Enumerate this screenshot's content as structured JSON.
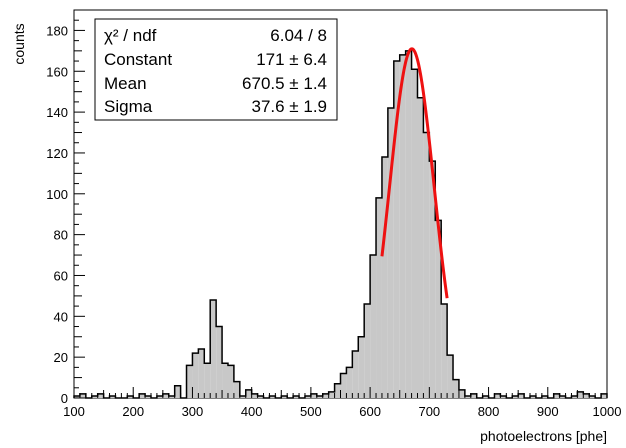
{
  "chart_data": {
    "type": "bar",
    "xlabel": "photoelectrons [phe]",
    "ylabel": "counts",
    "xlim": [
      100,
      1000
    ],
    "ylim": [
      0,
      190
    ],
    "x_ticks": [
      "100",
      "200",
      "300",
      "400",
      "500",
      "600",
      "700",
      "800",
      "900",
      "1000"
    ],
    "y_ticks": [
      "0",
      "20",
      "40",
      "60",
      "80",
      "100",
      "120",
      "140",
      "160",
      "180"
    ],
    "grid": false,
    "bin_width": 10,
    "bin_edges_start": 100,
    "values": [
      1,
      2,
      0,
      1,
      2,
      0,
      1,
      0,
      0,
      1,
      0,
      2,
      1,
      0,
      1,
      2,
      1,
      6,
      0,
      16,
      22,
      24,
      17,
      48,
      35,
      17,
      16,
      8,
      1,
      4,
      2,
      1,
      0,
      1,
      0,
      1,
      0,
      1,
      0,
      1,
      2,
      1,
      2,
      3,
      7,
      12,
      15,
      23,
      30,
      46,
      70,
      98,
      118,
      142,
      165,
      168,
      170,
      161,
      147,
      130,
      116,
      87,
      46,
      21,
      9,
      4,
      1,
      2,
      0,
      1,
      0,
      2,
      1,
      0,
      1,
      2,
      0,
      1,
      0,
      1,
      0,
      2,
      1,
      0,
      1,
      3,
      2,
      1,
      0,
      2
    ],
    "histogram_fill": "#c8c8c8",
    "histogram_line": "#000000",
    "fit": {
      "function": "gaussian",
      "range": [
        620,
        730
      ],
      "color": "#ee1111",
      "constant": 171,
      "mean": 670.5,
      "sigma": 37.6
    },
    "stats_box": {
      "legend_position": "top-left",
      "rows": [
        {
          "label": "χ² / ndf",
          "value": "6.04 / 8"
        },
        {
          "label": "Constant",
          "value": "171 ± 6.4"
        },
        {
          "label": "Mean",
          "value": "670.5 ± 1.4"
        },
        {
          "label": "Sigma",
          "value": "37.6 ± 1.9"
        }
      ]
    }
  }
}
